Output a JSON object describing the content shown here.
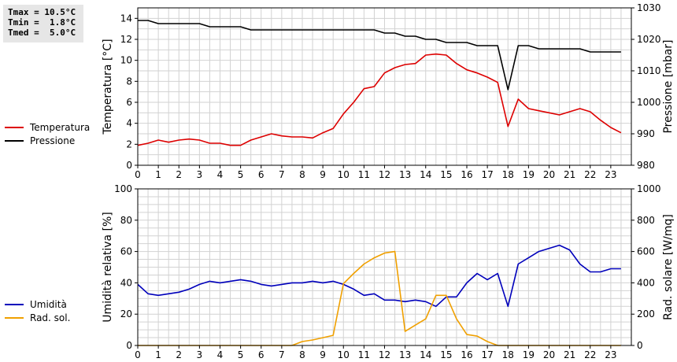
{
  "stats": {
    "tmax": "Tmax = 10.5°C",
    "tmin": "Tmin =  1.8°C",
    "tmed": "Tmed =  5.0°C"
  },
  "colors": {
    "temperature": "#dd0000",
    "pressure": "#000000",
    "humidity": "#0000bb",
    "radiation": "#f0a000",
    "grid": "#d2d2d2"
  },
  "chart_data": [
    {
      "type": "line",
      "x_label": "",
      "ylabel_left": "Temperatura [°C]",
      "ylabel_right": "Pressione [mbar]",
      "xlim": [
        0,
        24
      ],
      "x_ticks": [
        "0",
        "1",
        "2",
        "3",
        "4",
        "5",
        "6",
        "7",
        "8",
        "9",
        "10",
        "11",
        "12",
        "13",
        "14",
        "15",
        "16",
        "17",
        "18",
        "19",
        "20",
        "21",
        "22",
        "23"
      ],
      "ylim_left": [
        0,
        15
      ],
      "y_ticks_left": [
        "0",
        "2",
        "4",
        "6",
        "8",
        "10",
        "12",
        "14"
      ],
      "ylim_right": [
        980,
        1030
      ],
      "y_ticks_right": [
        "980",
        "990",
        "1000",
        "1010",
        "1020",
        "1030"
      ],
      "grid": true,
      "legend_position": "left",
      "series": [
        {
          "name": "Temperatura",
          "axis": "left",
          "color": "#dd0000",
          "x": [
            0,
            0.5,
            1,
            1.5,
            2,
            2.5,
            3,
            3.5,
            4,
            4.5,
            5,
            5.5,
            6,
            6.5,
            7,
            7.5,
            8,
            8.5,
            9,
            9.5,
            10,
            10.5,
            11,
            11.5,
            12,
            12.5,
            13,
            13.5,
            14,
            14.5,
            15,
            15.5,
            16,
            16.5,
            17,
            17.5,
            18,
            18.5,
            19,
            19.5,
            20,
            20.5,
            21,
            21.5,
            22,
            22.5,
            23,
            23.5
          ],
          "values": [
            1.9,
            2.1,
            2.4,
            2.2,
            2.4,
            2.5,
            2.4,
            2.1,
            2.1,
            1.9,
            1.9,
            2.4,
            2.7,
            3.0,
            2.8,
            2.7,
            2.7,
            2.6,
            3.1,
            3.5,
            4.9,
            6.0,
            7.3,
            7.5,
            8.8,
            9.3,
            9.6,
            9.7,
            10.5,
            10.6,
            10.5,
            9.7,
            9.1,
            8.8,
            8.4,
            7.9,
            3.7,
            6.3,
            5.4,
            5.2,
            5.0,
            4.8,
            5.1,
            5.4,
            5.1,
            4.3,
            3.6,
            3.1
          ]
        },
        {
          "name": "Pressione",
          "axis": "right",
          "color": "#000000",
          "x": [
            0,
            0.5,
            1,
            1.5,
            2,
            2.5,
            3,
            3.5,
            4,
            4.5,
            5,
            5.5,
            6,
            6.5,
            7,
            7.5,
            8,
            8.5,
            9,
            9.5,
            10,
            10.5,
            11,
            11.5,
            12,
            12.5,
            13,
            13.5,
            14,
            14.5,
            15,
            15.5,
            16,
            16.5,
            17,
            17.5,
            18,
            18.5,
            19,
            19.5,
            20,
            20.5,
            21,
            21.5,
            22,
            22.5,
            23,
            23.5
          ],
          "values": [
            1026,
            1026,
            1025,
            1025,
            1025,
            1025,
            1025,
            1024,
            1024,
            1024,
            1024,
            1023,
            1023,
            1023,
            1023,
            1023,
            1023,
            1023,
            1023,
            1023,
            1023,
            1023,
            1023,
            1023,
            1022,
            1022,
            1021,
            1021,
            1020,
            1020,
            1019,
            1019,
            1019,
            1018,
            1018,
            1018,
            1004,
            1018,
            1018,
            1017,
            1017,
            1017,
            1017,
            1017,
            1016,
            1016,
            1016,
            1016
          ]
        }
      ]
    },
    {
      "type": "line",
      "x_label": "",
      "ylabel_left": "Umidità relativa [%]",
      "ylabel_right": "Rad. solare [W/mq]",
      "xlim": [
        0,
        24
      ],
      "x_ticks": [
        "0",
        "1",
        "2",
        "3",
        "4",
        "5",
        "6",
        "7",
        "8",
        "9",
        "10",
        "11",
        "12",
        "13",
        "14",
        "15",
        "16",
        "17",
        "18",
        "19",
        "20",
        "21",
        "22",
        "23"
      ],
      "ylim_left": [
        0,
        100
      ],
      "y_ticks_left": [
        "0",
        "20",
        "40",
        "60",
        "80",
        "100"
      ],
      "ylim_right": [
        0,
        1000
      ],
      "y_ticks_right": [
        "0",
        "200",
        "400",
        "600",
        "800",
        "1000"
      ],
      "grid": true,
      "legend_position": "left",
      "series": [
        {
          "name": "Umidità",
          "axis": "left",
          "color": "#0000bb",
          "x": [
            0,
            0.5,
            1,
            1.5,
            2,
            2.5,
            3,
            3.5,
            4,
            4.5,
            5,
            5.5,
            6,
            6.5,
            7,
            7.5,
            8,
            8.5,
            9,
            9.5,
            10,
            10.5,
            11,
            11.5,
            12,
            12.5,
            13,
            13.5,
            14,
            14.5,
            15,
            15.5,
            16,
            16.5,
            17,
            17.5,
            18,
            18.5,
            19,
            19.5,
            20,
            20.5,
            21,
            21.5,
            22,
            22.5,
            23,
            23.5
          ],
          "values": [
            39,
            33,
            32,
            33,
            34,
            36,
            39,
            41,
            40,
            41,
            42,
            41,
            39,
            38,
            39,
            40,
            40,
            41,
            40,
            41,
            39,
            36,
            32,
            33,
            29,
            29,
            28,
            29,
            28,
            25,
            31,
            31,
            40,
            46,
            42,
            46,
            25,
            52,
            56,
            60,
            62,
            64,
            61,
            52,
            47,
            47,
            49,
            49
          ]
        },
        {
          "name": "Rad. sol.",
          "axis": "right",
          "color": "#f0a000",
          "x": [
            0,
            0.5,
            1,
            1.5,
            2,
            2.5,
            3,
            3.5,
            4,
            4.5,
            5,
            5.5,
            6,
            6.5,
            7,
            7.5,
            8,
            8.5,
            9,
            9.5,
            10,
            10.5,
            11,
            11.5,
            12,
            12.5,
            13,
            13.5,
            14,
            14.5,
            15,
            15.5,
            16,
            16.5,
            17,
            17.5,
            18,
            18.5,
            19,
            19.5,
            20,
            20.5,
            21,
            21.5,
            22,
            22.5,
            23,
            23.5
          ],
          "values": [
            0,
            0,
            0,
            0,
            0,
            0,
            0,
            0,
            0,
            0,
            0,
            0,
            0,
            0,
            0,
            0,
            25,
            35,
            50,
            65,
            395,
            460,
            520,
            560,
            590,
            600,
            90,
            130,
            170,
            320,
            320,
            170,
            70,
            60,
            25,
            0,
            0,
            0,
            0,
            0,
            0,
            0,
            0,
            0,
            0,
            0,
            0,
            0
          ]
        }
      ]
    }
  ]
}
